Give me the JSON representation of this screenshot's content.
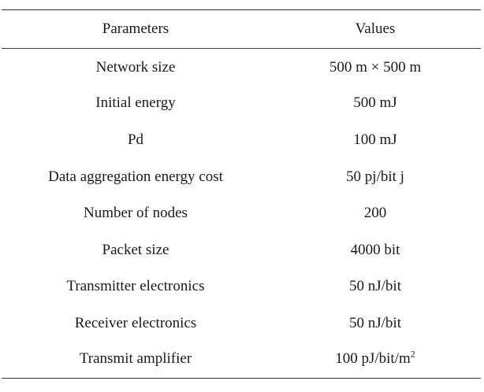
{
  "table": {
    "headers": {
      "parameters": "Parameters",
      "values": "Values"
    },
    "rows": [
      {
        "parameter": "Network size",
        "value": "500 m × 500 m"
      },
      {
        "parameter": "Initial energy",
        "value": "500 mJ"
      },
      {
        "parameter": "Pd",
        "value": "100 mJ"
      },
      {
        "parameter": "Data aggregation energy cost",
        "value": "50 pj/bit j"
      },
      {
        "parameter": "Number of nodes",
        "value": "200"
      },
      {
        "parameter": "Packet size",
        "value": "4000 bit"
      },
      {
        "parameter": "Transmitter electronics",
        "value": "50 nJ/bit"
      },
      {
        "parameter": "Receiver electronics",
        "value": "50 nJ/bit"
      },
      {
        "parameter": "Transmit amplifier",
        "value": "100 pJ/bit/m",
        "value_superscript": "2"
      }
    ]
  }
}
